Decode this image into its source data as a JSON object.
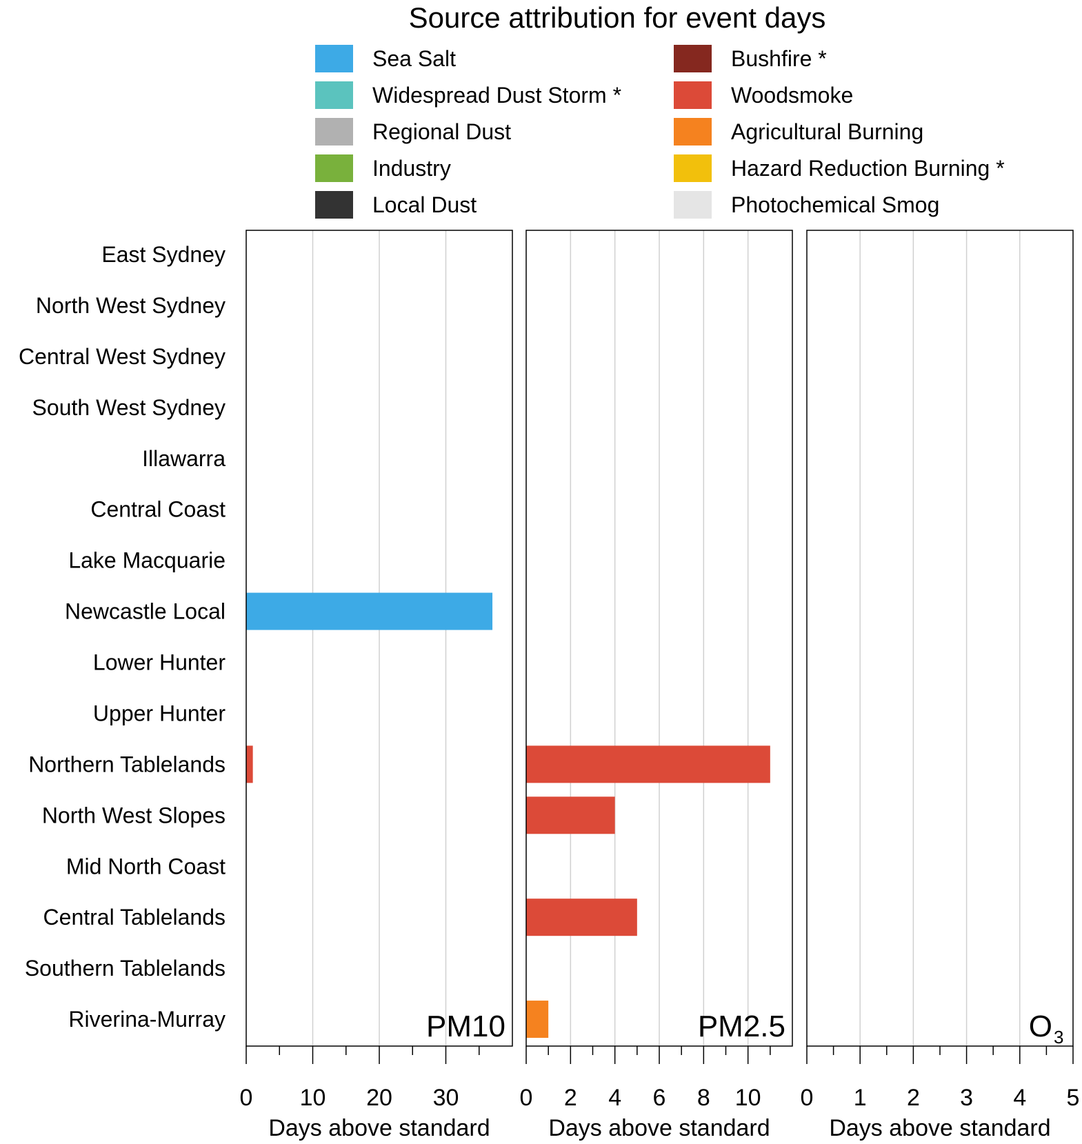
{
  "chart_data": {
    "type": "bar",
    "orientation": "horizontal",
    "title": "Source attribution for event days",
    "legend": [
      {
        "label": "Sea Salt",
        "color": "#3daae6"
      },
      {
        "label": "Widespread Dust Storm *",
        "color": "#5bc3be"
      },
      {
        "label": "Regional Dust",
        "color": "#b1b1b1"
      },
      {
        "label": "Industry",
        "color": "#79b13c"
      },
      {
        "label": "Local Dust",
        "color": "#333333"
      },
      {
        "label": "Bushfire *",
        "color": "#85281f"
      },
      {
        "label": "Woodsmoke",
        "color": "#dc4a38"
      },
      {
        "label": "Agricultural Burning",
        "color": "#f5821f"
      },
      {
        "label": "Hazard Reduction Burning *",
        "color": "#f2c00c"
      },
      {
        "label": "Photochemical Smog",
        "color": "#e5e5e5"
      }
    ],
    "categories": [
      "East Sydney",
      "North West Sydney",
      "Central West Sydney",
      "South West Sydney",
      "Illawarra",
      "Central Coast",
      "Lake Macquarie",
      "Newcastle Local",
      "Lower Hunter",
      "Upper Hunter",
      "Northern Tablelands",
      "North West Slopes",
      "Mid North Coast",
      "Central Tablelands",
      "Southern Tablelands",
      "Riverina-Murray"
    ],
    "panels": [
      {
        "label": "PM10",
        "pollutant": "PM10",
        "xlabel": "Days above standard",
        "xlim": [
          0,
          40
        ],
        "major_ticks": [
          0,
          10,
          20,
          30
        ],
        "minor_ticks": [
          5,
          15,
          25,
          35
        ],
        "bars": [
          {
            "region": "Newcastle Local",
            "source": "Sea Salt",
            "value": 37
          },
          {
            "region": "Northern Tablelands",
            "source": "Woodsmoke",
            "value": 1
          }
        ]
      },
      {
        "label": "PM2.5",
        "pollutant": "PM2.5",
        "xlabel": "Days above standard",
        "xlim": [
          0,
          12
        ],
        "major_ticks": [
          0,
          2,
          4,
          6,
          8,
          10
        ],
        "minor_ticks": [
          1,
          3,
          5,
          7,
          9,
          11
        ],
        "bars": [
          {
            "region": "Northern Tablelands",
            "source": "Woodsmoke",
            "value": 11
          },
          {
            "region": "North West Slopes",
            "source": "Woodsmoke",
            "value": 4
          },
          {
            "region": "Central Tablelands",
            "source": "Woodsmoke",
            "value": 5
          },
          {
            "region": "Riverina-Murray",
            "source": "Agricultural Burning",
            "value": 1
          }
        ]
      },
      {
        "label": "O",
        "label_subscript": "3",
        "pollutant": "O3",
        "xlabel": "Days above standard",
        "xlim": [
          0,
          5
        ],
        "major_ticks": [
          0,
          1,
          2,
          3,
          4,
          5
        ],
        "minor_ticks": [
          0.5,
          1.5,
          2.5,
          3.5,
          4.5
        ],
        "bars": []
      }
    ]
  }
}
